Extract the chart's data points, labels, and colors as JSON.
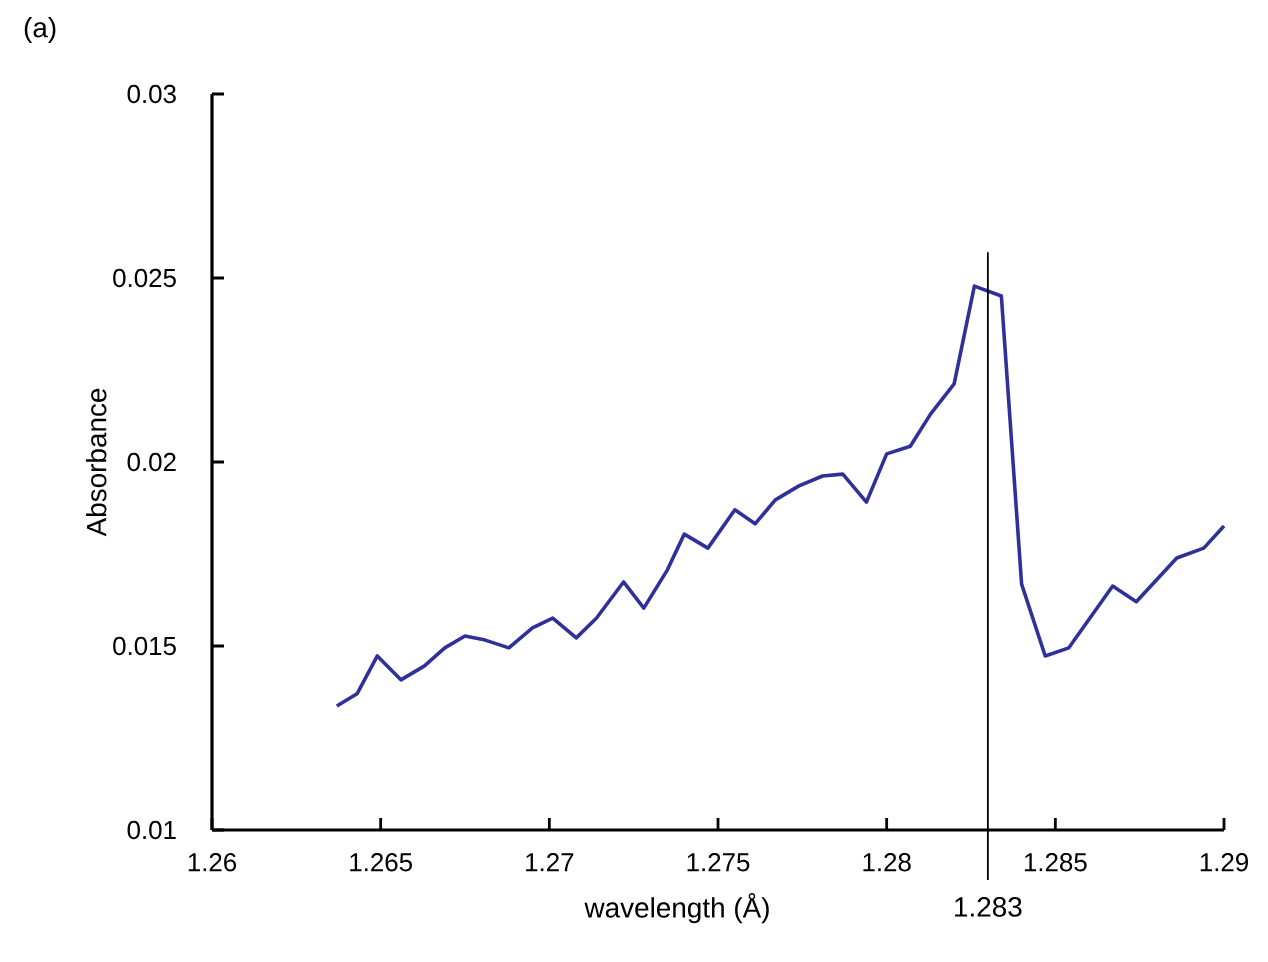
{
  "chart_data": {
    "type": "line",
    "title": "(a)",
    "xlabel": "wavelength (Å)",
    "ylabel": "Absorbance",
    "xlim": [
      1.26,
      1.29
    ],
    "xticks": [
      1.26,
      1.265,
      1.27,
      1.275,
      1.28,
      1.285,
      1.29
    ],
    "ylim": [
      0.01,
      0.03
    ],
    "yticks": [
      0.01,
      0.015,
      0.02,
      0.025,
      0.03
    ],
    "x": [
      1.2637,
      1.2643,
      1.2649,
      1.2656,
      1.2663,
      1.2669,
      1.2675,
      1.2681,
      1.2688,
      1.2695,
      1.2701,
      1.2708,
      1.2714,
      1.2722,
      1.2728,
      1.2735,
      1.274,
      1.2747,
      1.2755,
      1.2761,
      1.2767,
      1.2774,
      1.2781,
      1.2787,
      1.2794,
      1.28,
      1.2807,
      1.2813,
      1.282,
      1.2826,
      1.2834,
      1.284,
      1.2847,
      1.2854,
      1.2867,
      1.2874,
      1.2886,
      1.2894,
      1.29
    ],
    "series": [
      {
        "color": "#30309a",
        "values": [
          0.01337,
          0.0137,
          0.01473,
          0.01408,
          0.01446,
          0.01495,
          0.01527,
          0.01516,
          0.01495,
          0.01549,
          0.01576,
          0.01522,
          0.01576,
          0.01674,
          0.01603,
          0.01707,
          0.01804,
          0.01766,
          0.0187,
          0.01832,
          0.01897,
          0.01935,
          0.01962,
          0.01967,
          0.01891,
          0.02022,
          0.02043,
          0.0213,
          0.02212,
          0.02478,
          0.02451,
          0.01668,
          0.01473,
          0.01495,
          0.01663,
          0.0162,
          0.01739,
          0.01766,
          0.01826
        ]
      }
    ],
    "ref_lines": [
      {
        "axis": "x",
        "value": 1.283,
        "label": "1.283",
        "color": "#000000"
      }
    ],
    "grid": false,
    "marker": "none",
    "line_style": "solid"
  }
}
